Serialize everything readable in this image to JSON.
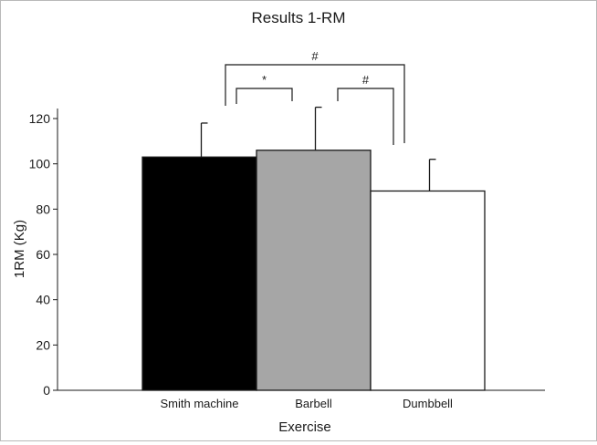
{
  "chart_data": {
    "type": "bar",
    "title": "Results 1-RM",
    "xlabel": "Exercise",
    "ylabel": "1RM (Kg)",
    "categories": [
      "Smith machine",
      "Barbell",
      "Dumbbell"
    ],
    "values": [
      103,
      106,
      88
    ],
    "error_upper": [
      118,
      125,
      102
    ],
    "bar_colors": [
      "#000000",
      "#a6a6a6",
      "#ffffff"
    ],
    "bar_edge_color": "#1a1a1a",
    "ylim": [
      0,
      120
    ],
    "yticks": [
      0,
      20,
      40,
      60,
      80,
      100,
      120
    ],
    "grid": false,
    "significance": [
      {
        "symbol": "*",
        "from": "Smith machine",
        "to": "Barbell"
      },
      {
        "symbol": "#",
        "from": "Barbell",
        "to": "Dumbbell"
      },
      {
        "symbol": "#",
        "from": "Smith machine",
        "to": "Dumbbell"
      }
    ]
  }
}
